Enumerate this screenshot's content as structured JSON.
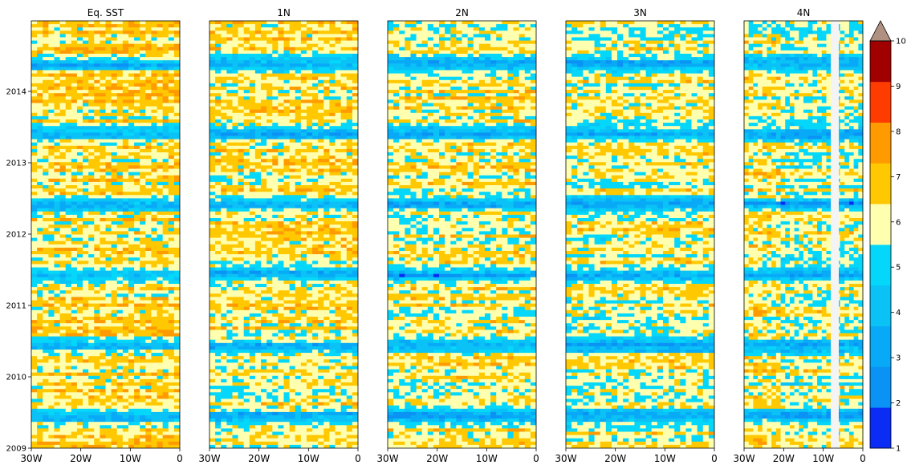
{
  "chart_data": {
    "type": "heatmap",
    "panels": [
      {
        "title": "Eq. SST"
      },
      {
        "title": "1N"
      },
      {
        "title": "2N"
      },
      {
        "title": "3N"
      },
      {
        "title": "4N"
      }
    ],
    "x_ticks": [
      "30W",
      "20W",
      "10W",
      "0"
    ],
    "y_ticks": [
      "2009",
      "2010",
      "2011",
      "2012",
      "2013",
      "2014"
    ],
    "colorbar": {
      "ticks": [
        "1",
        "2",
        "3",
        "4",
        "5",
        "6",
        "7",
        "8",
        "9",
        "10"
      ],
      "range": [
        1,
        10
      ],
      "extend": "max",
      "colors": [
        "#0a2cf5",
        "#0a92f5",
        "#08aaf7",
        "#0ac2f5",
        "#04d7fa",
        "#ffffb0",
        "#ffc800",
        "#ff9b00",
        "#ff3c00",
        "#a00000"
      ],
      "extend_color": "#b09080"
    },
    "grid": false
  }
}
